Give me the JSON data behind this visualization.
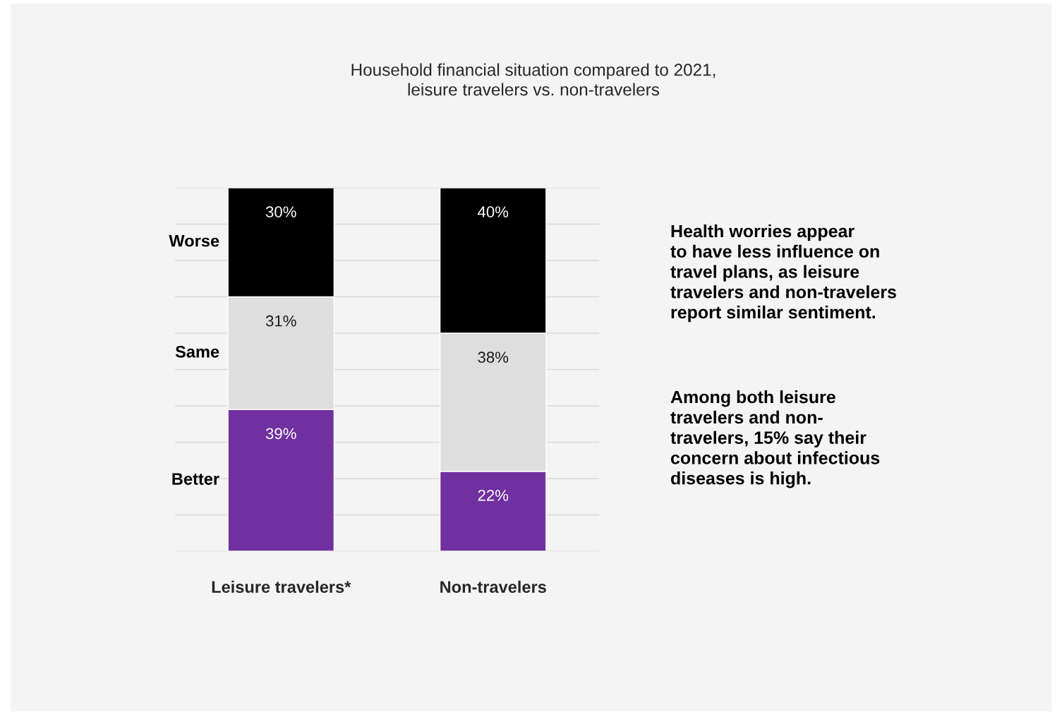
{
  "chart_data": {
    "type": "bar",
    "title": "Household financial situation compared to 2021,\nleisure travelers vs. non-travelers",
    "categories": [
      "Leisure travelers*",
      "Non-travelers"
    ],
    "stacked": true,
    "series": [
      {
        "name": "Better",
        "color": "#7030a0",
        "values": [
          39,
          22
        ],
        "value_labels": [
          "39%",
          "22%"
        ]
      },
      {
        "name": "Same",
        "color": "#dedede",
        "values": [
          31,
          38
        ],
        "value_labels": [
          "31%",
          "38%"
        ]
      },
      {
        "name": "Worse",
        "color": "#000000",
        "values": [
          30,
          40
        ],
        "value_labels": [
          "30%",
          "40%"
        ]
      }
    ],
    "ylim": [
      0,
      100
    ],
    "yticks": [
      {
        "value": 0,
        "label": null
      },
      {
        "value": 10,
        "label": null
      },
      {
        "value": 20,
        "label": null
      },
      {
        "value": 30,
        "label": null
      },
      {
        "value": 40,
        "label": null
      },
      {
        "value": 50,
        "label": null
      },
      {
        "value": 60,
        "label": null
      },
      {
        "value": 70,
        "label": null
      },
      {
        "value": 80,
        "label": null
      },
      {
        "value": 90,
        "label": null
      },
      {
        "value": 100,
        "label": null
      }
    ],
    "grid": "y",
    "tick_labels": "x",
    "annotations": [
      "Health worries appear\nto have less influence on\ntravel plans, as leisure\ntravelers and non-travelers\nreport similar sentiment.",
      "Among both leisure\ntravelers and non-\ntravelers, 15% say their\nconcern about infectious\ndiseases is high."
    ]
  }
}
